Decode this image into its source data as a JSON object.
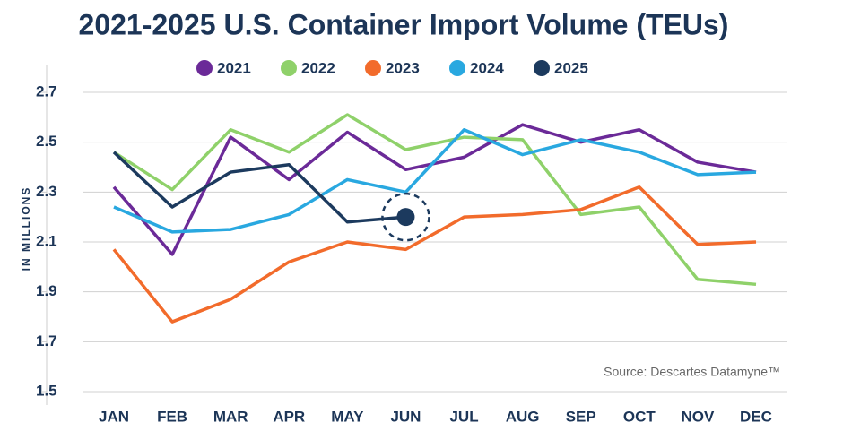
{
  "chart_data": {
    "type": "line",
    "title": "2021-2025 U.S. Container Import Volume (TEUs)",
    "y_label": "IN MILLIONS",
    "annotation": "Source: Descartes Datamyne™",
    "categories": [
      "JAN",
      "FEB",
      "MAR",
      "APR",
      "MAY",
      "JUN",
      "JUL",
      "AUG",
      "SEP",
      "OCT",
      "NOV",
      "DEC"
    ],
    "series": [
      {
        "name": "2021",
        "color": "#6b2a98",
        "values": [
          2.32,
          2.05,
          2.52,
          2.35,
          2.54,
          2.39,
          2.44,
          2.57,
          2.5,
          2.55,
          2.42,
          2.38
        ]
      },
      {
        "name": "2022",
        "color": "#8fd16a",
        "values": [
          2.46,
          2.31,
          2.55,
          2.46,
          2.61,
          2.47,
          2.52,
          2.51,
          2.21,
          2.24,
          1.95,
          1.93
        ]
      },
      {
        "name": "2023",
        "color": "#f26b2b",
        "values": [
          2.07,
          1.78,
          1.87,
          2.02,
          2.1,
          2.07,
          2.2,
          2.21,
          2.23,
          2.32,
          2.09,
          2.1
        ]
      },
      {
        "name": "2024",
        "color": "#29a8e0",
        "values": [
          2.24,
          2.14,
          2.15,
          2.21,
          2.35,
          2.3,
          2.55,
          2.45,
          2.51,
          2.46,
          2.37,
          2.38
        ]
      },
      {
        "name": "2025",
        "color": "#1c3a5e",
        "values": [
          2.46,
          2.24,
          2.38,
          2.41,
          2.18,
          2.2,
          null,
          null,
          null,
          null,
          null,
          null
        ]
      }
    ],
    "ylim": [
      1.5,
      2.7
    ],
    "yticks": [
      2.7,
      2.5,
      2.3,
      2.1,
      1.9,
      1.7,
      1.5
    ],
    "grid": true
  }
}
